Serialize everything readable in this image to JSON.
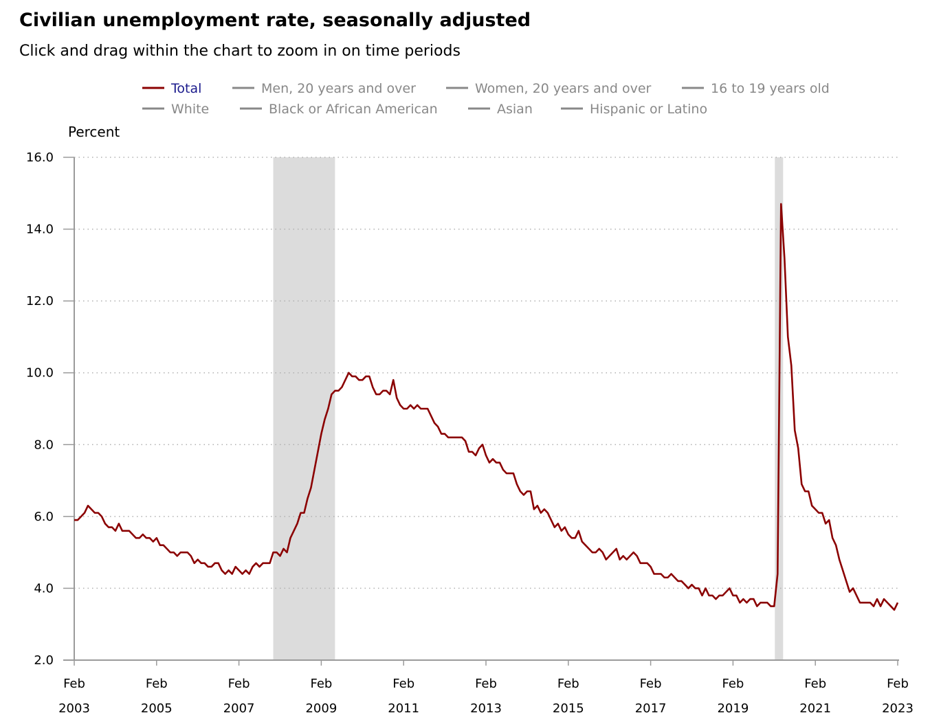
{
  "title": "Civilian unemployment rate, seasonally adjusted",
  "subtitle": "Click and drag within the chart to zoom in on time periods",
  "colors": {
    "total": "#8b0000",
    "inactive": "#888888",
    "recession": "#dcdcdc",
    "grid": "#b0b0b0",
    "axis": "#9a9a9a"
  },
  "legend": [
    {
      "label": "Total",
      "active": true
    },
    {
      "label": "Men, 20 years and over",
      "active": false
    },
    {
      "label": "Women, 20 years and over",
      "active": false
    },
    {
      "label": "16 to 19 years old",
      "active": false
    },
    {
      "label": "White",
      "active": false
    },
    {
      "label": "Black or African American",
      "active": false
    },
    {
      "label": "Asian",
      "active": false
    },
    {
      "label": "Hispanic or Latino",
      "active": false
    }
  ],
  "chart_data": {
    "type": "line",
    "title": "Civilian unemployment rate, seasonally adjusted",
    "ylabel": "Percent",
    "xlabel": "",
    "ylim": [
      2.0,
      16.0
    ],
    "xlim": [
      2003.0833,
      2023.0833
    ],
    "yticks": [
      "16.0",
      "14.0",
      "12.0",
      "10.0",
      "8.0",
      "6.0",
      "4.0",
      "2.0"
    ],
    "xticks": [
      {
        "month": "Feb",
        "year": "2003",
        "x": 2003.0833
      },
      {
        "month": "Feb",
        "year": "2005",
        "x": 2005.0833
      },
      {
        "month": "Feb",
        "year": "2007",
        "x": 2007.0833
      },
      {
        "month": "Feb",
        "year": "2009",
        "x": 2009.0833
      },
      {
        "month": "Feb",
        "year": "2011",
        "x": 2011.0833
      },
      {
        "month": "Feb",
        "year": "2013",
        "x": 2013.0833
      },
      {
        "month": "Feb",
        "year": "2015",
        "x": 2015.0833
      },
      {
        "month": "Feb",
        "year": "2017",
        "x": 2017.0833
      },
      {
        "month": "Feb",
        "year": "2019",
        "x": 2019.0833
      },
      {
        "month": "Feb",
        "year": "2021",
        "x": 2021.0833
      },
      {
        "month": "Feb",
        "year": "2023",
        "x": 2023.0833
      }
    ],
    "recessions": [
      {
        "start": 2007.9167,
        "end": 2009.4167
      },
      {
        "start": 2020.1,
        "end": 2020.3
      }
    ],
    "grid": true,
    "series": [
      {
        "name": "Total",
        "start": "2003-02",
        "frequency": "monthly",
        "values": [
          5.9,
          5.9,
          6.0,
          6.1,
          6.3,
          6.2,
          6.1,
          6.1,
          6.0,
          5.8,
          5.7,
          5.7,
          5.6,
          5.8,
          5.6,
          5.6,
          5.6,
          5.5,
          5.4,
          5.4,
          5.5,
          5.4,
          5.4,
          5.3,
          5.4,
          5.2,
          5.2,
          5.1,
          5.0,
          5.0,
          4.9,
          5.0,
          5.0,
          5.0,
          4.9,
          4.7,
          4.8,
          4.7,
          4.7,
          4.6,
          4.6,
          4.7,
          4.7,
          4.5,
          4.4,
          4.5,
          4.4,
          4.6,
          4.5,
          4.4,
          4.5,
          4.4,
          4.6,
          4.7,
          4.6,
          4.7,
          4.7,
          4.7,
          5.0,
          5.0,
          4.9,
          5.1,
          5.0,
          5.4,
          5.6,
          5.8,
          6.1,
          6.1,
          6.5,
          6.8,
          7.3,
          7.8,
          8.3,
          8.7,
          9.0,
          9.4,
          9.5,
          9.5,
          9.6,
          9.8,
          10.0,
          9.9,
          9.9,
          9.8,
          9.8,
          9.9,
          9.9,
          9.6,
          9.4,
          9.4,
          9.5,
          9.5,
          9.4,
          9.8,
          9.3,
          9.1,
          9.0,
          9.0,
          9.1,
          9.0,
          9.1,
          9.0,
          9.0,
          9.0,
          8.8,
          8.6,
          8.5,
          8.3,
          8.3,
          8.2,
          8.2,
          8.2,
          8.2,
          8.2,
          8.1,
          7.8,
          7.8,
          7.7,
          7.9,
          8.0,
          7.7,
          7.5,
          7.6,
          7.5,
          7.5,
          7.3,
          7.2,
          7.2,
          7.2,
          6.9,
          6.7,
          6.6,
          6.7,
          6.7,
          6.2,
          6.3,
          6.1,
          6.2,
          6.1,
          5.9,
          5.7,
          5.8,
          5.6,
          5.7,
          5.5,
          5.4,
          5.4,
          5.6,
          5.3,
          5.2,
          5.1,
          5.0,
          5.0,
          5.1,
          5.0,
          4.8,
          4.9,
          5.0,
          5.1,
          4.8,
          4.9,
          4.8,
          4.9,
          5.0,
          4.9,
          4.7,
          4.7,
          4.7,
          4.6,
          4.4,
          4.4,
          4.4,
          4.3,
          4.3,
          4.4,
          4.3,
          4.2,
          4.2,
          4.1,
          4.0,
          4.1,
          4.0,
          4.0,
          3.8,
          4.0,
          3.8,
          3.8,
          3.7,
          3.8,
          3.8,
          3.9,
          4.0,
          3.8,
          3.8,
          3.6,
          3.7,
          3.6,
          3.7,
          3.7,
          3.5,
          3.6,
          3.6,
          3.6,
          3.5,
          3.5,
          4.4,
          14.7,
          13.2,
          11.0,
          10.2,
          8.4,
          7.9,
          6.9,
          6.7,
          6.7,
          6.3,
          6.2,
          6.1,
          6.1,
          5.8,
          5.9,
          5.4,
          5.2,
          4.8,
          4.5,
          4.2,
          3.9,
          4.0,
          3.8,
          3.6,
          3.6,
          3.6,
          3.6,
          3.5,
          3.7,
          3.5,
          3.7,
          3.6,
          3.5,
          3.4,
          3.6
        ]
      }
    ]
  }
}
